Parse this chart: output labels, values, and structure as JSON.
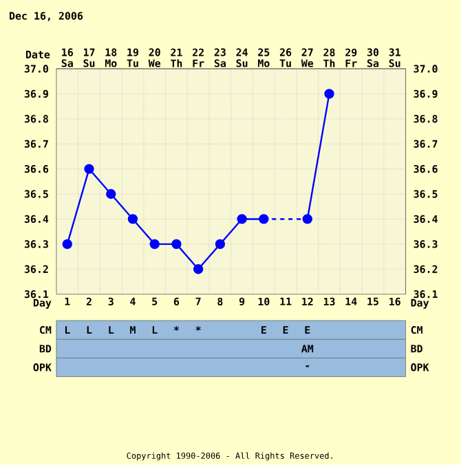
{
  "chart_data": [
    {
      "type": "line",
      "title": "Dec 16, 2006",
      "xlabel": "Day",
      "x2label": "Date",
      "categories": [
        "1",
        "2",
        "3",
        "4",
        "5",
        "6",
        "7",
        "8",
        "9",
        "10",
        "11",
        "12",
        "13",
        "14",
        "15",
        "16"
      ],
      "series": [
        {
          "color": "#0000ff",
          "marker": "circle",
          "line_style": "solid",
          "values": [
            36.3,
            36.6,
            36.5,
            36.4,
            36.3,
            36.3,
            36.2,
            36.3,
            36.4,
            36.4,
            null,
            null,
            null,
            null,
            null,
            null
          ]
        },
        {
          "color": "#0000ff",
          "line_style": "dashed",
          "values": [
            null,
            null,
            null,
            null,
            null,
            null,
            null,
            null,
            null,
            36.4,
            null,
            36.4,
            null,
            null,
            null,
            null
          ]
        },
        {
          "color": "#0000ff",
          "marker": "circle",
          "line_style": "solid",
          "values": [
            null,
            null,
            null,
            null,
            null,
            null,
            null,
            null,
            null,
            null,
            null,
            36.4,
            36.9,
            null,
            null,
            null
          ]
        }
      ],
      "ylim": [
        36.1,
        37.0
      ],
      "yticks": [
        36.1,
        36.2,
        36.3,
        36.4,
        36.5,
        36.6,
        36.7,
        36.8,
        36.9,
        {
          "value": 37.0,
          "label": "37.0"
        }
      ],
      "y2lim": [
        36.1,
        37.0
      ],
      "y2ticks": [
        36.1,
        36.2,
        36.3,
        36.4,
        36.5,
        36.6,
        36.7,
        36.8,
        36.9,
        {
          "value": 37.0,
          "label": "37.0"
        }
      ],
      "x2lim": [
        15.5,
        31.5
      ],
      "x2ticks": [
        {
          "value": 16,
          "label": "16 Sa"
        },
        {
          "value": 17,
          "label": "17 Su"
        },
        {
          "value": 18,
          "label": "18 Mo"
        },
        {
          "value": 19,
          "label": "19 Tu"
        },
        {
          "value": 20,
          "label": "20 We"
        },
        {
          "value": 21,
          "label": "21 Th"
        },
        {
          "value": 22,
          "label": "22 Fr"
        },
        {
          "value": 23,
          "label": "23 Sa"
        },
        {
          "value": 24,
          "label": "24 Su"
        },
        {
          "value": 25,
          "label": "25 Mo"
        },
        {
          "value": 26,
          "label": "26 Tu"
        },
        {
          "value": 27,
          "label": "27 We"
        },
        {
          "value": 28,
          "label": "28 Th"
        },
        {
          "value": 29,
          "label": "29 Fr"
        },
        {
          "value": 30,
          "label": "30 Sa"
        },
        {
          "value": 31,
          "label": "31 Su"
        }
      ],
      "grid": true,
      "annotations": [
        "Copyright 1990-2006 - All Rights Reserved."
      ]
    },
    {
      "type": "heatmap",
      "categories": [
        null,
        null,
        null,
        null,
        null,
        null,
        null,
        null,
        null,
        null,
        null,
        null,
        null,
        null,
        null,
        null
      ],
      "y_categories": [
        "CM",
        "BD",
        "OPK"
      ],
      "y2_categories": [
        "CM",
        "BD",
        "OPK"
      ],
      "cells": [
        [
          null,
          null,
          null,
          null,
          null,
          null,
          null,
          null,
          null,
          null,
          null,
          null,
          null,
          null,
          null,
          null
        ],
        [
          null,
          null,
          null,
          null,
          null,
          null,
          null,
          null,
          null,
          null,
          null,
          null,
          null,
          null,
          null,
          null
        ],
        [
          null,
          null,
          null,
          null,
          null,
          null,
          null,
          null,
          null,
          null,
          null,
          null,
          null,
          null,
          null,
          null
        ]
      ],
      "cell_labels": [
        [
          "L",
          "L",
          "L",
          "M",
          "L",
          "*",
          "*",
          null,
          null,
          "E",
          "E",
          "E",
          null,
          null,
          null,
          null
        ],
        [
          null,
          null,
          null,
          null,
          null,
          null,
          null,
          null,
          null,
          null,
          null,
          "AM",
          null,
          null,
          null,
          null
        ],
        [
          null,
          null,
          null,
          null,
          null,
          null,
          null,
          null,
          null,
          null,
          null,
          "-",
          null,
          null,
          null,
          null
        ]
      ]
    }
  ]
}
